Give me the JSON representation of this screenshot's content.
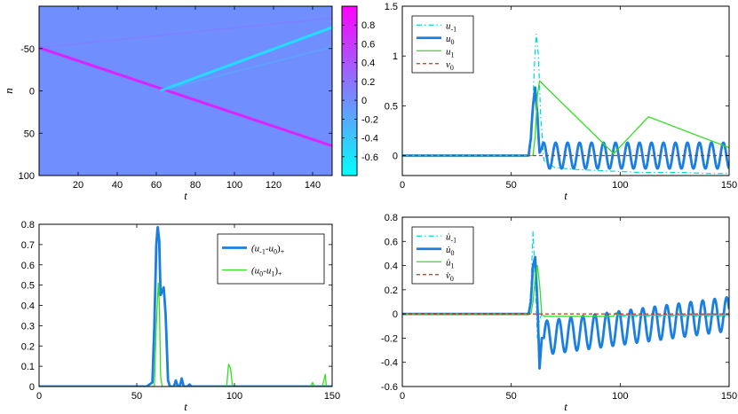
{
  "chart_data": [
    {
      "id": "heatmap",
      "type": "heatmap",
      "title": "",
      "xlabel": "t",
      "ylabel": "n",
      "xlim": [
        0,
        150
      ],
      "ylim": [
        100,
        -100
      ],
      "xticks": [
        "20",
        "40",
        "60",
        "80",
        "100",
        "120",
        "140"
      ],
      "yticks": [
        "-50",
        "0",
        "50",
        "100"
      ],
      "background_value": 0,
      "colorbar": {
        "range": [
          -0.8,
          1.0
        ],
        "ticks": [
          "0.8",
          "0.6",
          "0.4",
          "0.2",
          "0",
          "-0.2",
          "-0.4",
          "-0.6"
        ],
        "colormap": "cool"
      },
      "features": [
        {
          "name": "incoming-wave",
          "x": [
            0,
            150
          ],
          "y": [
            -51,
            65
          ],
          "value": 0.8
        },
        {
          "name": "transmitted-wave",
          "x": [
            62,
            150
          ],
          "y": [
            0,
            -75
          ],
          "value": -0.6
        },
        {
          "name": "faint-wave-a",
          "x": [
            62,
            150
          ],
          "y": [
            0,
            -52
          ],
          "value": -0.25
        },
        {
          "name": "faint-wave-b",
          "x": [
            0,
            150
          ],
          "y": [
            -51,
            -86
          ],
          "value": 0.15
        }
      ]
    },
    {
      "id": "displacement",
      "type": "line",
      "title": "",
      "xlabel": "t",
      "ylabel": "",
      "xlim": [
        0,
        150
      ],
      "ylim": [
        -0.2,
        1.5
      ],
      "xticks": [
        "0",
        "50",
        "100",
        "150"
      ],
      "yticks": [
        "0",
        "0.5",
        "1",
        "1.5"
      ],
      "legend_position": "top-left",
      "series": [
        {
          "name": "u",
          "sub": "-1",
          "color": "#00d7d7",
          "dash": "dashdot",
          "width": 1.2,
          "x": [
            0,
            58,
            59,
            60,
            60.8,
            61.5,
            62.5,
            63.5,
            65,
            70,
            80,
            90,
            100,
            110,
            120,
            130,
            140,
            150
          ],
          "y": [
            0,
            0,
            0.1,
            0.55,
            1.0,
            1.22,
            1.0,
            0.4,
            -0.05,
            -0.12,
            -0.14,
            -0.15,
            -0.16,
            -0.17,
            -0.17,
            -0.17,
            -0.18,
            -0.18
          ]
        },
        {
          "name": "u",
          "sub": "0",
          "color": "#1a7fe0",
          "dash": "solid",
          "width": 2.8,
          "oscillation": {
            "start": 58,
            "amplitude": 0.13,
            "period": 5.5
          },
          "x": [
            0,
            58,
            59,
            60,
            61,
            62,
            63,
            64,
            150
          ],
          "y": [
            0,
            0,
            0.05,
            0.4,
            0.72,
            0.55,
            0.1,
            0,
            0
          ]
        },
        {
          "name": "u",
          "sub": "1",
          "color": "#33dd22",
          "dash": "solid",
          "width": 1.3,
          "x": [
            0,
            60,
            61,
            62,
            63,
            97,
            113,
            150
          ],
          "y": [
            0,
            0,
            0.2,
            0.6,
            0.75,
            0.02,
            0.39,
            0.08
          ]
        },
        {
          "name": "v",
          "sub": "0",
          "color": "#e02020",
          "dash": "dashed",
          "width": 1.3,
          "x": [
            0,
            150
          ],
          "y": [
            0,
            0
          ]
        }
      ]
    },
    {
      "id": "differences",
      "type": "line",
      "title": "",
      "xlabel": "t",
      "ylabel": "",
      "xlim": [
        0,
        150
      ],
      "ylim": [
        0,
        0.8
      ],
      "xticks": [
        "0",
        "50",
        "100",
        "150"
      ],
      "yticks": [
        "0",
        "0.1",
        "0.2",
        "0.3",
        "0.4",
        "0.5",
        "0.6",
        "0.7",
        "0.8"
      ],
      "legend_position": "top-right",
      "series": [
        {
          "name": "(u-1-u0)+",
          "label_parts": [
            "(u",
            "-1",
            "-u",
            "0",
            ")",
            "+"
          ],
          "color": "#1a7fe0",
          "dash": "solid",
          "width": 2.8,
          "x": [
            0,
            55,
            58,
            59,
            60,
            60.7,
            61.5,
            62.2,
            63,
            63.8,
            64.8,
            66,
            67,
            68,
            69,
            70,
            71,
            72,
            73,
            74,
            75,
            76,
            77,
            78,
            150
          ],
          "y": [
            0,
            0,
            0.02,
            0.3,
            0.7,
            0.79,
            0.72,
            0.45,
            0.47,
            0.49,
            0.35,
            0.03,
            0,
            0,
            0,
            0.03,
            0,
            0,
            0.04,
            0,
            0,
            0,
            0.01,
            0,
            0
          ]
        },
        {
          "name": "(u0-u1)+",
          "label_parts": [
            "(u",
            "0",
            "-u",
            "1",
            ")",
            "+"
          ],
          "color": "#33dd22",
          "dash": "solid",
          "width": 1.3,
          "x": [
            0,
            59,
            60,
            61,
            61.6,
            62.2,
            63,
            96,
            97,
            98,
            99,
            139,
            140,
            141,
            145,
            146,
            146.5,
            147,
            150
          ],
          "y": [
            0,
            0,
            0.3,
            0.51,
            0.4,
            0.05,
            0,
            0,
            0.11,
            0.09,
            0,
            0,
            0.02,
            0,
            0,
            0.04,
            0.06,
            0,
            0
          ]
        }
      ]
    },
    {
      "id": "velocity",
      "type": "line",
      "title": "",
      "xlabel": "t",
      "ylabel": "",
      "xlim": [
        0,
        150
      ],
      "ylim": [
        -0.6,
        0.8
      ],
      "xticks": [
        "0",
        "50",
        "100",
        "150"
      ],
      "yticks": [
        "-0.6",
        "-0.4",
        "-0.2",
        "0",
        "0.2",
        "0.4",
        "0.6",
        "0.8"
      ],
      "legend_position": "top-left",
      "series": [
        {
          "name": "u̇",
          "sub": "-1",
          "color": "#00d7d7",
          "dash": "dashdot",
          "width": 1.2,
          "x": [
            0,
            58,
            59,
            60,
            61,
            62,
            63,
            64,
            66,
            150
          ],
          "y": [
            0,
            0,
            0.2,
            0.68,
            0.3,
            -0.2,
            -0.05,
            0,
            -0.02,
            -0.02
          ]
        },
        {
          "name": "u̇",
          "sub": "0",
          "color": "#1a7fe0",
          "dash": "solid",
          "width": 2.8,
          "oscillation": {
            "start": 65,
            "amplitude": 0.14,
            "period": 5.5
          },
          "x": [
            0,
            58,
            59,
            60,
            61,
            62,
            63,
            64,
            150
          ],
          "y": [
            0,
            0,
            0.1,
            0.4,
            0.47,
            0.1,
            -0.45,
            -0.2,
            0
          ]
        },
        {
          "name": "u̇",
          "sub": "1",
          "color": "#33dd22",
          "dash": "solid",
          "width": 1.3,
          "x": [
            0,
            59,
            60,
            61,
            62,
            63,
            64,
            65,
            97,
            98,
            99,
            150
          ],
          "y": [
            0,
            0,
            0.1,
            0.3,
            0.4,
            0.25,
            0,
            -0.02,
            -0.02,
            0.01,
            -0.01,
            -0.01
          ]
        },
        {
          "name": "v̇",
          "sub": "0",
          "color": "#e02020",
          "dash": "dashed",
          "width": 1.3,
          "x": [
            0,
            150
          ],
          "y": [
            0,
            0
          ]
        }
      ]
    }
  ]
}
